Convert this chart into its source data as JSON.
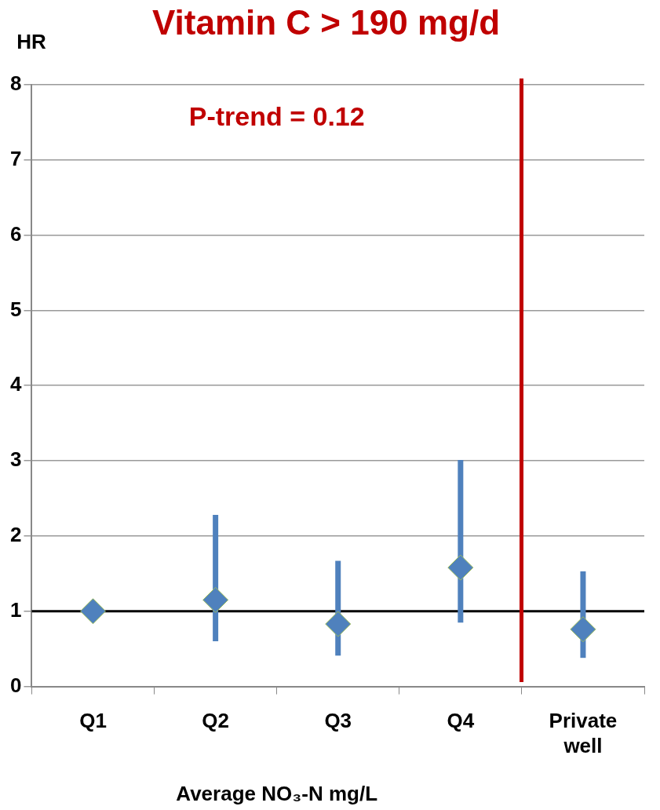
{
  "chart_data": {
    "type": "scatter",
    "title": "Vitamin C > 190 mg/d",
    "ylabel": "HR",
    "xlabel": "Average NO₃-N mg/L",
    "categories": [
      "Q1",
      "Q2",
      "Q3",
      "Q4",
      "Private well"
    ],
    "values": [
      1.0,
      1.15,
      0.83,
      1.58,
      0.76
    ],
    "errors": [
      null,
      [
        0.6,
        2.28
      ],
      [
        0.41,
        1.67
      ],
      [
        0.85,
        3.01
      ],
      [
        0.38,
        1.53
      ]
    ],
    "color": "#4f81bd",
    "marker": "diamond",
    "ylim": [
      0,
      8
    ],
    "yticks": [
      0,
      1,
      2,
      3,
      4,
      5,
      6,
      7,
      8
    ],
    "grid": "y",
    "legend": false,
    "ref_lines": [
      {
        "axis": "y",
        "value": 1,
        "color": "#000000"
      }
    ],
    "annotations": [
      "P-trend = 0.12"
    ]
  }
}
